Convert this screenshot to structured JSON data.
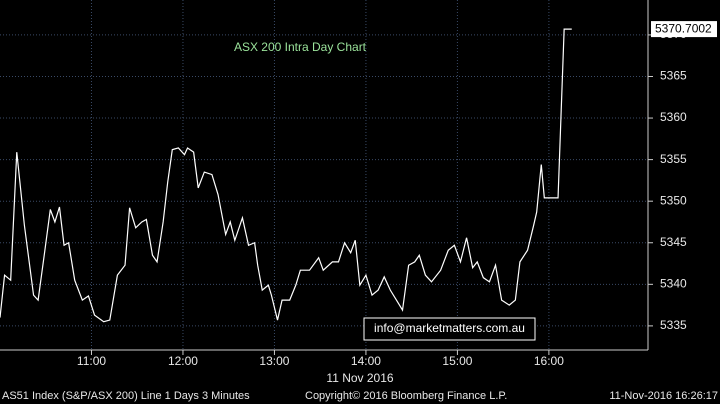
{
  "chart_data": {
    "type": "line",
    "title": "ASX 200 Intra Day Chart",
    "watermark": "info@marketmatters.com.au",
    "date_label": "11 Nov 2016",
    "footer": [
      "AS51 Index (S&P/ASX 200) Line 1 Days 3 Minutes",
      "Copyright© 2016 Bloomberg Finance L.P.",
      "11-Nov-2016 16:26:17"
    ],
    "last_value": 5370.7002,
    "xlim": [
      600,
      1025
    ],
    "xticks": [
      {
        "value": 660,
        "label": "11:00"
      },
      {
        "value": 720,
        "label": "12:00"
      },
      {
        "value": 780,
        "label": "13:00"
      },
      {
        "value": 840,
        "label": "14:00"
      },
      {
        "value": 900,
        "label": "15:00"
      },
      {
        "value": 960,
        "label": "16:00"
      }
    ],
    "ylim": [
      5332.1,
      5374.2
    ],
    "yticks": [
      5335,
      5340,
      5345,
      5350,
      5355,
      5360,
      5365,
      5370
    ],
    "grid": true,
    "x": [
      600,
      603,
      607,
      611,
      616,
      622,
      625,
      629,
      633,
      636,
      639,
      642,
      645,
      649,
      654,
      658,
      662,
      668,
      672,
      677,
      682,
      685,
      689,
      693,
      696,
      700,
      703,
      707,
      710,
      713,
      717,
      721,
      723,
      727,
      730,
      734,
      739,
      743,
      748,
      751,
      754,
      759,
      763,
      767,
      769,
      772,
      776,
      778,
      782,
      785,
      790,
      794,
      797,
      803,
      809,
      812,
      818,
      822,
      826,
      830,
      833,
      836,
      840,
      844,
      848,
      852,
      856,
      860,
      864,
      868,
      872,
      875,
      879,
      883,
      889,
      894,
      898,
      902,
      906,
      910,
      913,
      917,
      921,
      925,
      929,
      934,
      938,
      941,
      946,
      950,
      952,
      955,
      957,
      966,
      970,
      975
    ],
    "series": [
      {
        "name": "AS51 Index",
        "color": "#ffffff",
        "values": [
          5336,
          5341.1,
          5340.5,
          5355.9,
          5347.1,
          5338.7,
          5338.1,
          5343.5,
          5349,
          5347.5,
          5349.3,
          5344.7,
          5345,
          5340.5,
          5338.1,
          5338.6,
          5336.3,
          5335.5,
          5335.7,
          5341.1,
          5342.3,
          5349.2,
          5346.8,
          5347.5,
          5347.8,
          5343.5,
          5342.7,
          5347.5,
          5352.3,
          5356.2,
          5356.4,
          5355.6,
          5356.4,
          5355.9,
          5351.6,
          5353.5,
          5353.2,
          5350.8,
          5346,
          5347.5,
          5345.3,
          5348,
          5344.7,
          5345,
          5342.3,
          5339.3,
          5339.9,
          5338.7,
          5335.7,
          5338.1,
          5338.1,
          5339.9,
          5341.7,
          5341.7,
          5343.2,
          5341.7,
          5342.7,
          5342.7,
          5345,
          5343.8,
          5345.3,
          5339.9,
          5341.1,
          5338.7,
          5339.3,
          5340.9,
          5339.3,
          5338.1,
          5336.9,
          5342.3,
          5342.7,
          5343.5,
          5341.1,
          5340.3,
          5341.7,
          5344.1,
          5344.7,
          5342.7,
          5345.6,
          5342,
          5342.7,
          5340.8,
          5340.3,
          5342.3,
          5338.1,
          5337.5,
          5338.1,
          5342.7,
          5344.1,
          5347.1,
          5348.7,
          5354.4,
          5350.4,
          5350.4,
          5370.7,
          5370.7
        ]
      }
    ]
  }
}
